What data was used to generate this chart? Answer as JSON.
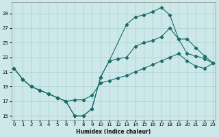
{
  "xlabel": "Humidex (Indice chaleur)",
  "bg_color": "#cce8e8",
  "grid_color": "#aacccc",
  "line_color": "#1a6b6b",
  "xlim": [
    -0.3,
    23.3
  ],
  "ylim": [
    14.5,
    30.5
  ],
  "xticks": [
    0,
    1,
    2,
    3,
    4,
    5,
    6,
    7,
    8,
    9,
    10,
    11,
    12,
    13,
    14,
    15,
    16,
    17,
    18,
    19,
    20,
    21,
    22,
    23
  ],
  "yticks": [
    15,
    17,
    19,
    21,
    23,
    25,
    27,
    29
  ],
  "line1_x": [
    0,
    1,
    2,
    3,
    4,
    5,
    6,
    7,
    8,
    9,
    10,
    11,
    13,
    14,
    15,
    16,
    17,
    18,
    19,
    20,
    21,
    22,
    23
  ],
  "line1_y": [
    21.5,
    20.0,
    19.0,
    18.5,
    18.0,
    17.5,
    17.0,
    15.0,
    15.0,
    16.0,
    20.3,
    22.5,
    27.5,
    28.5,
    28.8,
    29.2,
    29.8,
    28.8,
    25.5,
    23.5,
    23.2,
    22.8,
    22.2
  ],
  "line2_x": [
    0,
    1,
    2,
    3,
    4,
    5,
    6,
    7,
    8,
    9,
    10,
    11,
    12,
    13,
    14,
    15,
    16,
    17,
    18,
    19,
    20,
    21,
    22,
    23
  ],
  "line2_y": [
    21.5,
    20.0,
    19.0,
    18.5,
    18.0,
    17.5,
    17.0,
    15.0,
    15.0,
    16.0,
    20.3,
    22.5,
    22.8,
    23.0,
    24.5,
    25.0,
    25.3,
    25.8,
    27.0,
    25.5,
    25.5,
    24.3,
    23.2,
    22.2
  ],
  "line3_x": [
    0,
    1,
    2,
    3,
    4,
    5,
    6,
    7,
    8,
    9,
    10,
    11,
    12,
    13,
    14,
    15,
    16,
    17,
    18,
    19,
    20,
    21,
    22,
    23
  ],
  "line3_y": [
    21.5,
    20.0,
    19.0,
    18.5,
    18.0,
    17.5,
    17.0,
    17.2,
    17.2,
    17.8,
    19.5,
    19.8,
    20.2,
    20.5,
    21.0,
    21.5,
    22.0,
    22.5,
    23.0,
    23.5,
    22.5,
    21.8,
    21.5,
    22.2
  ]
}
